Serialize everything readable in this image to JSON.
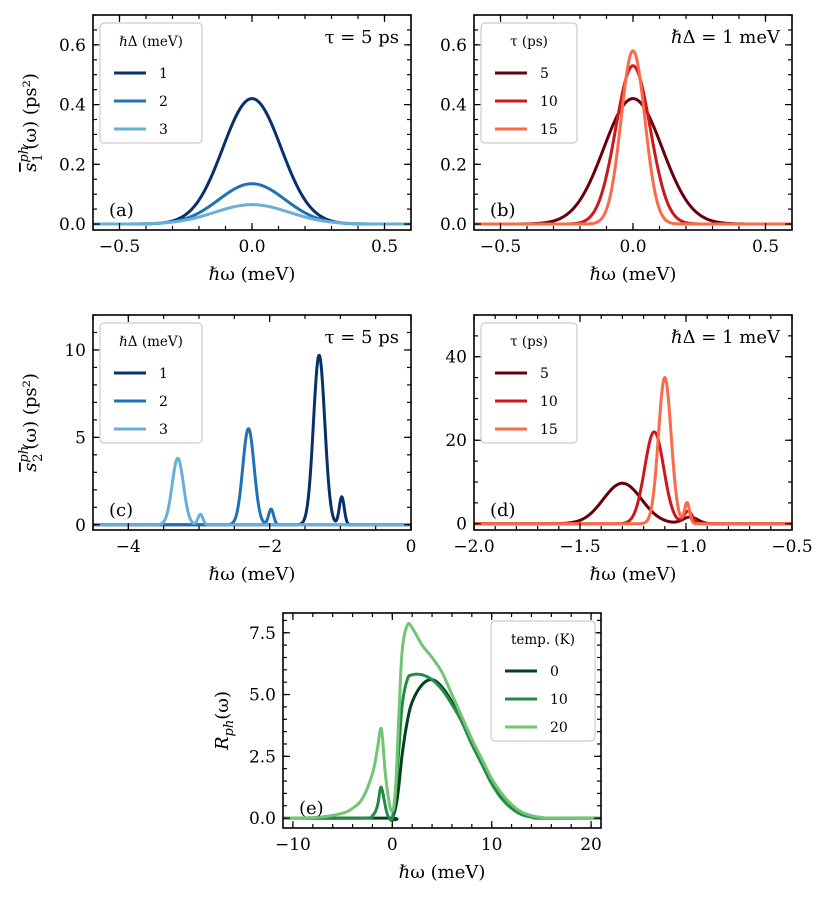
{
  "chart_data": [
    {
      "type": "line",
      "panel_label": "(a)",
      "xlabel": "ℏω (meV)",
      "ylabel": {
        "main": "s",
        "bar": true,
        "sub": "1",
        "sup": "ph",
        "tail": "(ω) (ps²)"
      },
      "xlim": [
        -0.6,
        0.6
      ],
      "ylim": [
        -0.02,
        0.7
      ],
      "xticks": [
        -0.5,
        0,
        0.5
      ],
      "xtick_labels": [
        "−0.5",
        "0.0",
        "0.5"
      ],
      "yticks": [
        0,
        0.2,
        0.4,
        0.6
      ],
      "ytick_labels": [
        "0.0",
        "0.2",
        "0.4",
        "0.6"
      ],
      "x_minor_step": 0.1,
      "y_minor_step": 0.05,
      "annotation": "τ = 5 ps",
      "annotation_position": "top-right",
      "legend": {
        "title": "ℏΔ (meV)",
        "position": "top-left"
      },
      "series": [
        {
          "name": "1",
          "color": "#08306b",
          "shape": "gaussian",
          "peak_x": 0.0,
          "peak_y": 0.42,
          "width": 0.11
        },
        {
          "name": "2",
          "color": "#2171b5",
          "shape": "gaussian",
          "peak_x": 0.0,
          "peak_y": 0.135,
          "width": 0.125
        },
        {
          "name": "3",
          "color": "#6baed6",
          "shape": "gaussian",
          "peak_x": 0.0,
          "peak_y": 0.065,
          "width": 0.14
        }
      ]
    },
    {
      "type": "line",
      "panel_label": "(b)",
      "xlabel": "ℏω (meV)",
      "ylabel": null,
      "xlim": [
        -0.6,
        0.6
      ],
      "ylim": [
        -0.02,
        0.7
      ],
      "xticks": [
        -0.5,
        0,
        0.5
      ],
      "xtick_labels": [
        "−0.5",
        "0.0",
        "0.5"
      ],
      "yticks": [
        0,
        0.2,
        0.4,
        0.6
      ],
      "ytick_labels": [
        "0.0",
        "0.2",
        "0.4",
        "0.6"
      ],
      "x_minor_step": 0.1,
      "y_minor_step": 0.05,
      "annotation": "ℏΔ = 1 meV",
      "annotation_position": "top-right",
      "legend": {
        "title": "τ (ps)",
        "position": "top-left"
      },
      "series": [
        {
          "name": "5",
          "color": "#67000d",
          "shape": "gaussian",
          "peak_x": 0.0,
          "peak_y": 0.42,
          "width": 0.11
        },
        {
          "name": "10",
          "color": "#cb181d",
          "shape": "gaussian",
          "peak_x": 0.0,
          "peak_y": 0.53,
          "width": 0.065
        },
        {
          "name": "15",
          "color": "#fb6a4a",
          "shape": "gaussian",
          "peak_x": 0.0,
          "peak_y": 0.58,
          "width": 0.045
        }
      ]
    },
    {
      "type": "line",
      "panel_label": "(c)",
      "xlabel": "ℏω (meV)",
      "ylabel": {
        "main": "s",
        "bar": true,
        "sub": "2",
        "sup": "ph",
        "tail": "(ω) (ps²)"
      },
      "xlim": [
        -4.5,
        0
      ],
      "ylim": [
        -0.3,
        12
      ],
      "xticks": [
        -4,
        -2,
        0
      ],
      "xtick_labels": [
        "−4",
        "−2",
        "0"
      ],
      "yticks": [
        0,
        5,
        10
      ],
      "ytick_labels": [
        "0",
        "5",
        "10"
      ],
      "x_minor_step": 0.5,
      "y_minor_step": 1,
      "annotation": "τ = 5 ps",
      "annotation_position": "top-right",
      "legend": {
        "title": "ℏΔ (meV)",
        "position": "top-left"
      },
      "series": [
        {
          "name": "1",
          "color": "#08306b",
          "shape": "double_peak",
          "peaks": [
            [
              -1.3,
              9.7,
              0.08
            ],
            [
              -0.98,
              1.6,
              0.035
            ]
          ]
        },
        {
          "name": "2",
          "color": "#2171b5",
          "shape": "double_peak",
          "peaks": [
            [
              -2.3,
              5.5,
              0.08
            ],
            [
              -1.98,
              0.9,
              0.035
            ]
          ]
        },
        {
          "name": "3",
          "color": "#6baed6",
          "shape": "double_peak",
          "peaks": [
            [
              -3.3,
              3.8,
              0.08
            ],
            [
              -2.98,
              0.6,
              0.035
            ]
          ]
        }
      ]
    },
    {
      "type": "line",
      "panel_label": "(d)",
      "xlabel": "ℏω (meV)",
      "ylabel": null,
      "xlim": [
        -2.0,
        -0.5
      ],
      "ylim": [
        -1.5,
        50
      ],
      "xticks": [
        -2.0,
        -1.5,
        -1.0,
        -0.5
      ],
      "xtick_labels": [
        "−2.0",
        "−1.5",
        "−1.0",
        "−0.5"
      ],
      "yticks": [
        0,
        20,
        40
      ],
      "ytick_labels": [
        "0",
        "20",
        "40"
      ],
      "x_minor_step": 0.1,
      "y_minor_step": 5,
      "annotation": "ℏΔ = 1 meV",
      "annotation_position": "top-right",
      "legend": {
        "title": "τ (ps)",
        "position": "top-left"
      },
      "series": [
        {
          "name": "5",
          "color": "#67000d",
          "shape": "double_peak",
          "peaks": [
            [
              -1.3,
              9.7,
              0.09
            ],
            [
              -0.98,
              1.6,
              0.035
            ]
          ]
        },
        {
          "name": "10",
          "color": "#cb181d",
          "shape": "double_peak",
          "peaks": [
            [
              -1.15,
              22,
              0.045
            ],
            [
              -0.99,
              3.0,
              0.02
            ]
          ]
        },
        {
          "name": "15",
          "color": "#fb6a4a",
          "shape": "double_peak",
          "peaks": [
            [
              -1.1,
              35,
              0.03
            ],
            [
              -0.995,
              5.0,
              0.012
            ]
          ]
        }
      ]
    },
    {
      "type": "line",
      "panel_label": "(e)",
      "xlabel": "ℏω (meV)",
      "ylabel": {
        "main": "R",
        "bar": false,
        "sub": "ph",
        "sup": "",
        "tail": "(ω)"
      },
      "xlim": [
        -11,
        21
      ],
      "ylim": [
        -0.4,
        8.3
      ],
      "xticks": [
        -10,
        0,
        10,
        20
      ],
      "xtick_labels": [
        "−10",
        "0",
        "10",
        "20"
      ],
      "yticks": [
        0,
        2.5,
        5,
        7.5
      ],
      "ytick_labels": [
        "0.0",
        "2.5",
        "5.0",
        "7.5"
      ],
      "x_minor_step": 2,
      "y_minor_step": 0.5,
      "annotation": "",
      "legend": {
        "title": "temp. (K)",
        "position": "top-right"
      },
      "series": [
        {
          "name": "0",
          "color": "#00441b",
          "shape": "response",
          "x": [
            -11,
            -0.5,
            0,
            0.5,
            1,
            1.5,
            2,
            3,
            4,
            5,
            6,
            7,
            8,
            9,
            10,
            11,
            12,
            13,
            14,
            15,
            21
          ],
          "y": [
            0,
            0,
            0,
            0.8,
            2.6,
            3.9,
            4.7,
            5.4,
            5.6,
            5.3,
            4.7,
            3.9,
            3.0,
            2.2,
            1.4,
            0.8,
            0.4,
            0.15,
            0.05,
            0,
            0
          ]
        },
        {
          "name": "10",
          "color": "#238b45",
          "shape": "response",
          "x": [
            -11,
            -3,
            -2,
            -1.5,
            -1.2,
            -1,
            -0.6,
            -0.3,
            0,
            0.3,
            0.7,
            1,
            1.5,
            2,
            3,
            4,
            5,
            6,
            7,
            8,
            9,
            10,
            11,
            12,
            13,
            14,
            15,
            21
          ],
          "y": [
            0,
            0,
            0.1,
            0.5,
            1.2,
            1.1,
            0.3,
            0,
            0,
            1.0,
            3.0,
            4.6,
            5.6,
            5.8,
            5.8,
            5.6,
            5.2,
            4.6,
            3.9,
            3.0,
            2.2,
            1.4,
            0.8,
            0.4,
            0.15,
            0.05,
            0,
            0
          ]
        },
        {
          "name": "20",
          "color": "#74c476",
          "shape": "response",
          "x": [
            -11,
            -9,
            -7,
            -5,
            -4,
            -3,
            -2,
            -1.5,
            -1.2,
            -1,
            -0.7,
            -0.3,
            0,
            0.3,
            0.7,
            1,
            1.5,
            2,
            3,
            4,
            5,
            6,
            7,
            8,
            9,
            10,
            11,
            12,
            13,
            14,
            15,
            16,
            21
          ],
          "y": [
            0,
            0.01,
            0.05,
            0.2,
            0.4,
            0.8,
            1.8,
            2.8,
            3.6,
            3.3,
            1.8,
            0.6,
            0.3,
            1.0,
            4.5,
            6.8,
            7.8,
            7.7,
            7.0,
            6.5,
            5.9,
            5.0,
            4.1,
            3.2,
            2.4,
            1.6,
            1.0,
            0.55,
            0.25,
            0.1,
            0.03,
            0,
            0
          ]
        }
      ]
    }
  ]
}
